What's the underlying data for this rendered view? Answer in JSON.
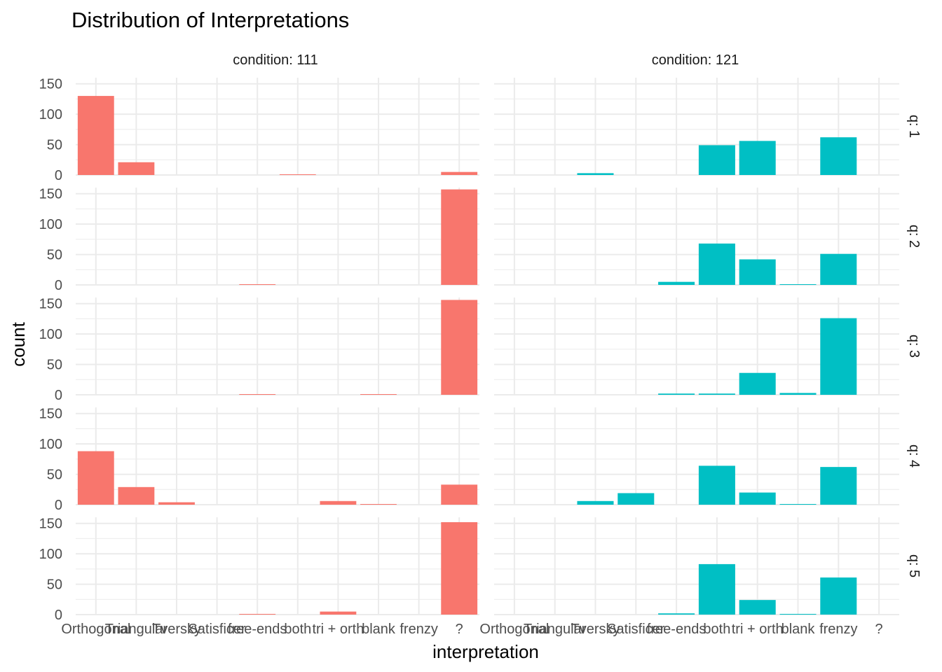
{
  "chart_data": {
    "type": "bar",
    "title": "Distribution of Interpretations",
    "xlabel": "interpretation",
    "ylabel": "count",
    "ylim": [
      0,
      160
    ],
    "yticks": [
      0,
      50,
      100,
      150
    ],
    "ytick_labels": [
      "0",
      "50",
      "100",
      "150"
    ],
    "grid": true,
    "legend": "none",
    "categories": [
      "Orthogonal",
      "Triangular",
      "Tversky",
      "Satisficer",
      "free-ends",
      "both",
      "tri + orth",
      "blank",
      "frenzy",
      "?"
    ],
    "col_facet_labels": [
      "condition: 111",
      "condition: 121"
    ],
    "row_facet_labels": [
      "q: 1",
      "q: 2",
      "q: 3",
      "q: 4",
      "q: 5"
    ],
    "colors": {
      "condition_111": "#F8766D",
      "condition_121": "#00BFC4"
    },
    "panels": [
      [
        {
          "condition": "111",
          "q": "1",
          "values": [
            130,
            21,
            0,
            0,
            0,
            1,
            0,
            0,
            0,
            5
          ]
        },
        {
          "condition": "121",
          "q": "1",
          "values": [
            0,
            0,
            3,
            0,
            0,
            49,
            56,
            0,
            62,
            0
          ]
        }
      ],
      [
        {
          "condition": "111",
          "q": "2",
          "values": [
            0,
            0,
            0,
            0,
            1,
            0,
            0,
            0,
            0,
            157
          ]
        },
        {
          "condition": "121",
          "q": "2",
          "values": [
            0,
            0,
            0,
            0,
            5,
            68,
            42,
            1,
            51,
            0
          ]
        }
      ],
      [
        {
          "condition": "111",
          "q": "3",
          "values": [
            0,
            0,
            0,
            0,
            1,
            0,
            0,
            1,
            0,
            156
          ]
        },
        {
          "condition": "121",
          "q": "3",
          "values": [
            0,
            0,
            0,
            0,
            2,
            2,
            36,
            3,
            126,
            0
          ]
        }
      ],
      [
        {
          "condition": "111",
          "q": "4",
          "values": [
            88,
            29,
            4,
            0,
            0,
            0,
            6,
            1,
            0,
            33
          ]
        },
        {
          "condition": "121",
          "q": "4",
          "values": [
            0,
            0,
            6,
            19,
            0,
            64,
            20,
            1,
            62,
            0
          ]
        }
      ],
      [
        {
          "condition": "111",
          "q": "5",
          "values": [
            0,
            0,
            0,
            0,
            1,
            0,
            5,
            0,
            0,
            152
          ]
        },
        {
          "condition": "121",
          "q": "5",
          "values": [
            0,
            0,
            0,
            0,
            2,
            83,
            24,
            1,
            61,
            0
          ]
        }
      ]
    ]
  }
}
